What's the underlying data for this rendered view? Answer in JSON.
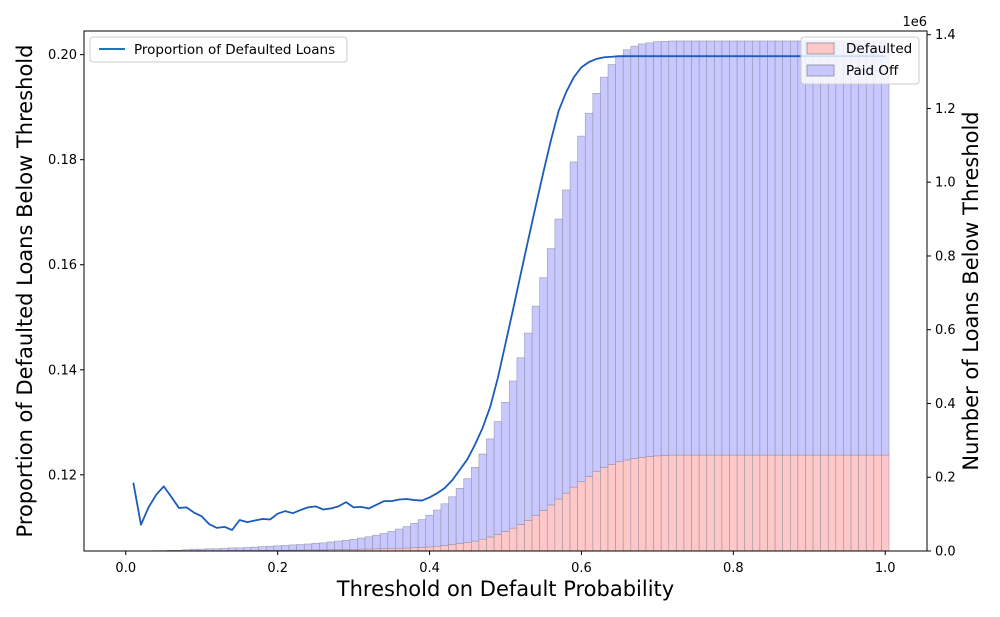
{
  "chart_data": {
    "type": "bar",
    "xlabel": "Threshold on Default Probability",
    "ylabel_left": "Proportion of Defaulted Loans Below Threshold",
    "ylabel_right": "Number of Loans Below Threshold",
    "right_axis_multiplier": "1e6",
    "xlim": [
      -0.055,
      1.055
    ],
    "ylim_left": [
      0.1055,
      0.2045
    ],
    "ylim_right": [
      0,
      1.41
    ],
    "x_ticks": [
      "0.0",
      "0.2",
      "0.4",
      "0.6",
      "0.8",
      "1.0"
    ],
    "y_left_ticks": [
      "0.12",
      "0.14",
      "0.16",
      "0.18",
      "0.20"
    ],
    "y_right_ticks": [
      "0.0",
      "0.2",
      "0.4",
      "0.6",
      "0.8",
      "1.0",
      "1.2",
      "1.4"
    ],
    "grid": false,
    "legends": [
      {
        "placement": "top-left",
        "entries": [
          {
            "label": "Proportion of Defaulted Loans",
            "color": "#1f77b4",
            "kind": "line"
          }
        ]
      },
      {
        "placement": "top-right",
        "entries": [
          {
            "label": "Defaulted",
            "color": "#ffc8c8",
            "kind": "patch"
          },
          {
            "label": "Paid Off",
            "color": "#c8c8ff",
            "kind": "patch"
          }
        ]
      }
    ],
    "bar_colors": {
      "defaulted": "#ffc8c8",
      "paid_off": "#c8c8ff",
      "edge": "#8a8a9a"
    },
    "fitted_line_color": "#1a5cb8",
    "thresholds": [
      0.01,
      0.02,
      0.03,
      0.04,
      0.05,
      0.06,
      0.07,
      0.08,
      0.09,
      0.1,
      0.11,
      0.12,
      0.13,
      0.14,
      0.15,
      0.16,
      0.17,
      0.18,
      0.19,
      0.2,
      0.21,
      0.22,
      0.23,
      0.24,
      0.25,
      0.26,
      0.27,
      0.28,
      0.29,
      0.3,
      0.31,
      0.32,
      0.33,
      0.34,
      0.35,
      0.36,
      0.37,
      0.38,
      0.39,
      0.4,
      0.41,
      0.42,
      0.43,
      0.44,
      0.45,
      0.46,
      0.47,
      0.48,
      0.49,
      0.5,
      0.51,
      0.52,
      0.53,
      0.54,
      0.55,
      0.56,
      0.57,
      0.58,
      0.59,
      0.6,
      0.61,
      0.62,
      0.63,
      0.64,
      0.65,
      0.66,
      0.67,
      0.68,
      0.69,
      0.7,
      0.71,
      0.72,
      0.73,
      0.74,
      0.75,
      0.76,
      0.77,
      0.78,
      0.79,
      0.8,
      0.81,
      0.82,
      0.83,
      0.84,
      0.85,
      0.86,
      0.87,
      0.88,
      0.89,
      0.9,
      0.91,
      0.92,
      0.93,
      0.94,
      0.95,
      0.96,
      0.97,
      0.98,
      0.99,
      1.0
    ],
    "series": [
      {
        "name": "Defaulted",
        "axis": "right",
        "kind": "bar",
        "values": [
          0,
          0,
          0,
          0,
          0,
          0,
          0,
          0.0005,
          0.001,
          0.001,
          0.001,
          0.001,
          0.001,
          0.0015,
          0.0015,
          0.0015,
          0.0015,
          0.002,
          0.002,
          0.002,
          0.002,
          0.0025,
          0.0025,
          0.003,
          0.003,
          0.003,
          0.0035,
          0.004,
          0.004,
          0.0045,
          0.005,
          0.0055,
          0.006,
          0.0065,
          0.007,
          0.0075,
          0.008,
          0.009,
          0.01,
          0.011,
          0.013,
          0.015,
          0.017,
          0.02,
          0.023,
          0.027,
          0.032,
          0.038,
          0.045,
          0.053,
          0.062,
          0.072,
          0.083,
          0.096,
          0.11,
          0.125,
          0.141,
          0.157,
          0.173,
          0.188,
          0.202,
          0.215,
          0.226,
          0.235,
          0.242,
          0.247,
          0.251,
          0.254,
          0.256,
          0.258,
          0.259,
          0.26,
          0.26,
          0.26,
          0.26,
          0.26,
          0.26,
          0.26,
          0.26,
          0.26,
          0.26,
          0.26,
          0.26,
          0.26,
          0.26,
          0.26,
          0.26,
          0.26,
          0.26,
          0.26,
          0.26,
          0.26,
          0.26,
          0.26,
          0.26,
          0.26,
          0.26,
          0.26,
          0.26,
          0.26
        ]
      },
      {
        "name": "Paid Off",
        "axis": "right",
        "kind": "bar",
        "values": [
          0,
          0,
          0,
          0.001,
          0.001,
          0.002,
          0.002,
          0.003,
          0.004,
          0.004,
          0.005,
          0.005,
          0.006,
          0.007,
          0.007,
          0.008,
          0.009,
          0.01,
          0.011,
          0.012,
          0.013,
          0.014,
          0.015,
          0.016,
          0.018,
          0.019,
          0.021,
          0.023,
          0.025,
          0.027,
          0.03,
          0.033,
          0.037,
          0.041,
          0.046,
          0.052,
          0.058,
          0.066,
          0.075,
          0.086,
          0.098,
          0.113,
          0.13,
          0.15,
          0.173,
          0.2,
          0.231,
          0.266,
          0.306,
          0.35,
          0.399,
          0.452,
          0.508,
          0.568,
          0.631,
          0.695,
          0.759,
          0.822,
          0.882,
          0.937,
          0.985,
          1.026,
          1.059,
          1.084,
          1.101,
          1.112,
          1.118,
          1.121,
          1.122,
          1.123,
          1.123,
          1.123,
          1.123,
          1.123,
          1.123,
          1.123,
          1.123,
          1.123,
          1.123,
          1.123,
          1.123,
          1.123,
          1.123,
          1.123,
          1.123,
          1.123,
          1.123,
          1.123,
          1.123,
          1.123,
          1.123,
          1.123,
          1.123,
          1.123,
          1.123,
          1.123,
          1.123,
          1.123,
          1.123,
          1.123
        ]
      },
      {
        "name": "Proportion of Defaulted Loans",
        "axis": "left",
        "kind": "line",
        "values": [
          0.1185,
          0.1105,
          0.1138,
          0.1162,
          0.1178,
          0.1158,
          0.1137,
          0.1138,
          0.1128,
          0.1121,
          0.1106,
          0.1099,
          0.1101,
          0.1095,
          0.1114,
          0.111,
          0.1113,
          0.1116,
          0.1115,
          0.1126,
          0.1131,
          0.1127,
          0.1133,
          0.1138,
          0.114,
          0.1134,
          0.1136,
          0.114,
          0.1148,
          0.1138,
          0.1139,
          0.1136,
          0.1143,
          0.115,
          0.115,
          0.1153,
          0.1154,
          0.1152,
          0.1151,
          0.1157,
          0.1165,
          0.1175,
          0.119,
          0.121,
          0.123,
          0.1258,
          0.129,
          0.133,
          0.1385,
          0.145,
          0.1515,
          0.1582,
          0.1648,
          0.1713,
          0.1777,
          0.1838,
          0.1893,
          0.1929,
          0.1957,
          0.1976,
          0.1986,
          0.1992,
          0.1995,
          0.1996,
          0.1997,
          0.1997,
          0.1997,
          0.1997,
          0.1997,
          0.1997,
          0.1997,
          0.1997,
          0.1997,
          0.1997,
          0.1997,
          0.1997,
          0.1997,
          0.1997,
          0.1997,
          0.1997,
          0.1997,
          0.1997,
          0.1997,
          0.1997,
          0.1997,
          0.1997,
          0.1997,
          0.1997,
          0.1997,
          0.1997,
          0.1997,
          0.1997,
          0.1997,
          0.1997,
          0.1997,
          0.1997,
          0.1997,
          0.1997,
          0.1997,
          0.1997
        ]
      }
    ]
  }
}
